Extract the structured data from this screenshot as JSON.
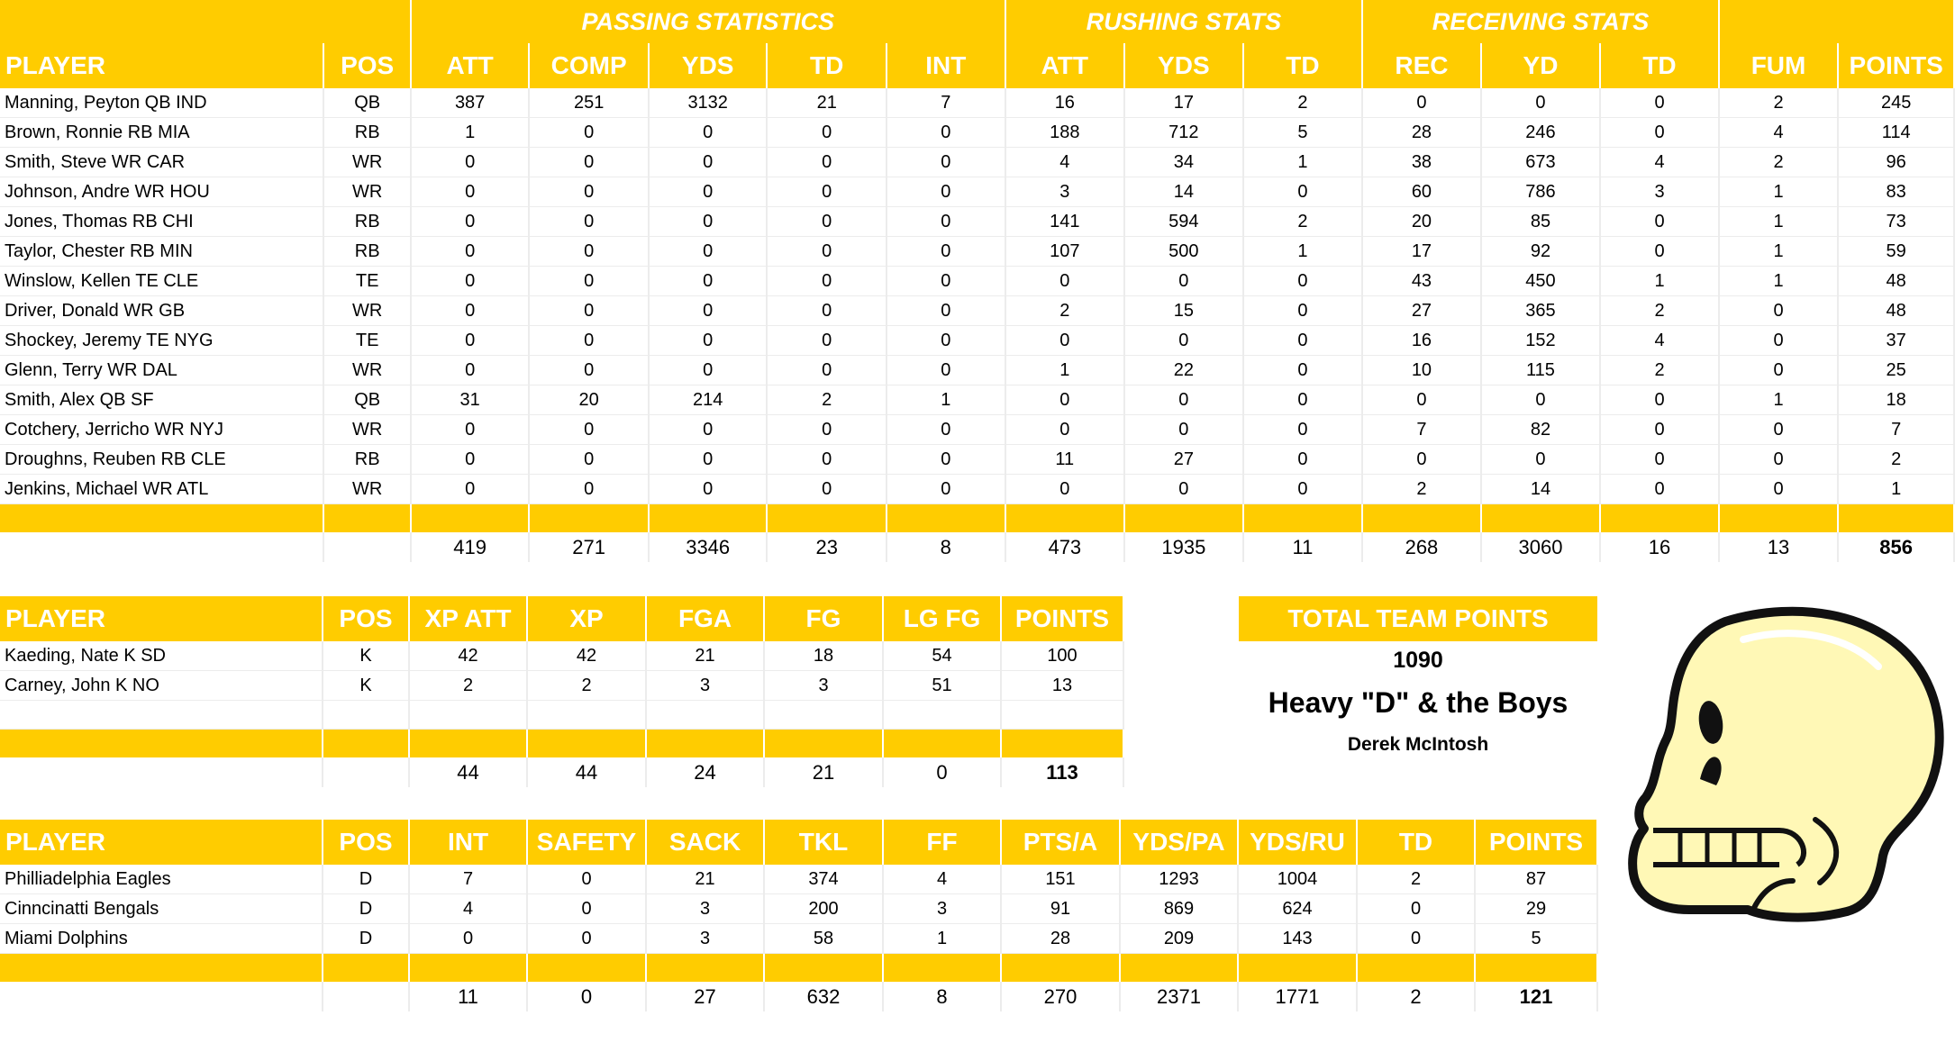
{
  "players": {
    "group_headers": [
      "PASSING STATISTICS",
      "RUSHING STATS",
      "RECEIVING STATS"
    ],
    "columns": [
      "PLAYER",
      "POS",
      "ATT",
      "COMP",
      "YDS",
      "TD",
      "INT",
      "ATT",
      "YDS",
      "TD",
      "REC",
      "YD",
      "TD",
      "FUM",
      "POINTS"
    ],
    "rows": [
      [
        "Manning, Peyton QB IND",
        "QB",
        "387",
        "251",
        "3132",
        "21",
        "7",
        "16",
        "17",
        "2",
        "0",
        "0",
        "0",
        "2",
        "245"
      ],
      [
        "Brown, Ronnie RB MIA",
        "RB",
        "1",
        "0",
        "0",
        "0",
        "0",
        "188",
        "712",
        "5",
        "28",
        "246",
        "0",
        "4",
        "114"
      ],
      [
        "Smith, Steve WR CAR",
        "WR",
        "0",
        "0",
        "0",
        "0",
        "0",
        "4",
        "34",
        "1",
        "38",
        "673",
        "4",
        "2",
        "96"
      ],
      [
        "Johnson, Andre WR HOU",
        "WR",
        "0",
        "0",
        "0",
        "0",
        "0",
        "3",
        "14",
        "0",
        "60",
        "786",
        "3",
        "1",
        "83"
      ],
      [
        "Jones, Thomas RB CHI",
        "RB",
        "0",
        "0",
        "0",
        "0",
        "0",
        "141",
        "594",
        "2",
        "20",
        "85",
        "0",
        "1",
        "73"
      ],
      [
        "Taylor, Chester RB MIN",
        "RB",
        "0",
        "0",
        "0",
        "0",
        "0",
        "107",
        "500",
        "1",
        "17",
        "92",
        "0",
        "1",
        "59"
      ],
      [
        "Winslow, Kellen TE CLE",
        "TE",
        "0",
        "0",
        "0",
        "0",
        "0",
        "0",
        "0",
        "0",
        "43",
        "450",
        "1",
        "1",
        "48"
      ],
      [
        "Driver, Donald WR GB",
        "WR",
        "0",
        "0",
        "0",
        "0",
        "0",
        "2",
        "15",
        "0",
        "27",
        "365",
        "2",
        "0",
        "48"
      ],
      [
        "Shockey, Jeremy TE NYG",
        "TE",
        "0",
        "0",
        "0",
        "0",
        "0",
        "0",
        "0",
        "0",
        "16",
        "152",
        "4",
        "0",
        "37"
      ],
      [
        "Glenn, Terry WR DAL",
        "WR",
        "0",
        "0",
        "0",
        "0",
        "0",
        "1",
        "22",
        "0",
        "10",
        "115",
        "2",
        "0",
        "25"
      ],
      [
        "Smith, Alex QB SF",
        "QB",
        "31",
        "20",
        "214",
        "2",
        "1",
        "0",
        "0",
        "0",
        "0",
        "0",
        "0",
        "1",
        "18"
      ],
      [
        "Cotchery, Jerricho WR NYJ",
        "WR",
        "0",
        "0",
        "0",
        "0",
        "0",
        "0",
        "0",
        "0",
        "7",
        "82",
        "0",
        "0",
        "7"
      ],
      [
        "Droughns, Reuben RB CLE",
        "RB",
        "0",
        "0",
        "0",
        "0",
        "0",
        "11",
        "27",
        "0",
        "0",
        "0",
        "0",
        "0",
        "2"
      ],
      [
        "Jenkins, Michael WR ATL",
        "WR",
        "0",
        "0",
        "0",
        "0",
        "0",
        "0",
        "0",
        "0",
        "2",
        "14",
        "0",
        "0",
        "1"
      ]
    ],
    "totals": [
      "419",
      "271",
      "3346",
      "23",
      "8",
      "473",
      "1935",
      "11",
      "268",
      "3060",
      "16",
      "13",
      "856"
    ]
  },
  "kickers": {
    "columns": [
      "PLAYER",
      "POS",
      "XP ATT",
      "XP",
      "FGA",
      "FG",
      "LG FG",
      "POINTS"
    ],
    "rows": [
      [
        "Kaeding, Nate K SD",
        "K",
        "42",
        "42",
        "21",
        "18",
        "54",
        "100"
      ],
      [
        "Carney, John K NO",
        "K",
        "2",
        "2",
        "3",
        "3",
        "51",
        "13"
      ]
    ],
    "totals": [
      "44",
      "44",
      "24",
      "21",
      "0",
      "113"
    ]
  },
  "defense": {
    "columns": [
      "PLAYER",
      "POS",
      "INT",
      "SAFETY",
      "SACK",
      "TKL",
      "FF",
      "PTS/A",
      "YDS/PA",
      "YDS/RU",
      "TD",
      "POINTS"
    ],
    "rows": [
      [
        "Philliadelphia Eagles",
        "D",
        "7",
        "0",
        "21",
        "374",
        "4",
        "151",
        "1293",
        "1004",
        "2",
        "87"
      ],
      [
        "Cinncinatti Bengals",
        "D",
        "4",
        "0",
        "3",
        "200",
        "3",
        "91",
        "869",
        "624",
        "0",
        "29"
      ],
      [
        "Miami Dolphins",
        "D",
        "0",
        "0",
        "3",
        "58",
        "1",
        "28",
        "209",
        "143",
        "0",
        "5"
      ]
    ],
    "totals": [
      "11",
      "0",
      "27",
      "632",
      "8",
      "270",
      "2371",
      "1771",
      "2",
      "121"
    ]
  },
  "team": {
    "header": "TOTAL TEAM POINTS",
    "total_points": "1090",
    "name": "Heavy \"D\" & the Boys",
    "owner": "Derek McIntosh"
  },
  "colors": {
    "accent": "#FFCC00",
    "header_text": "#FFFFFF"
  },
  "icons": {
    "logo": "skull-icon"
  }
}
